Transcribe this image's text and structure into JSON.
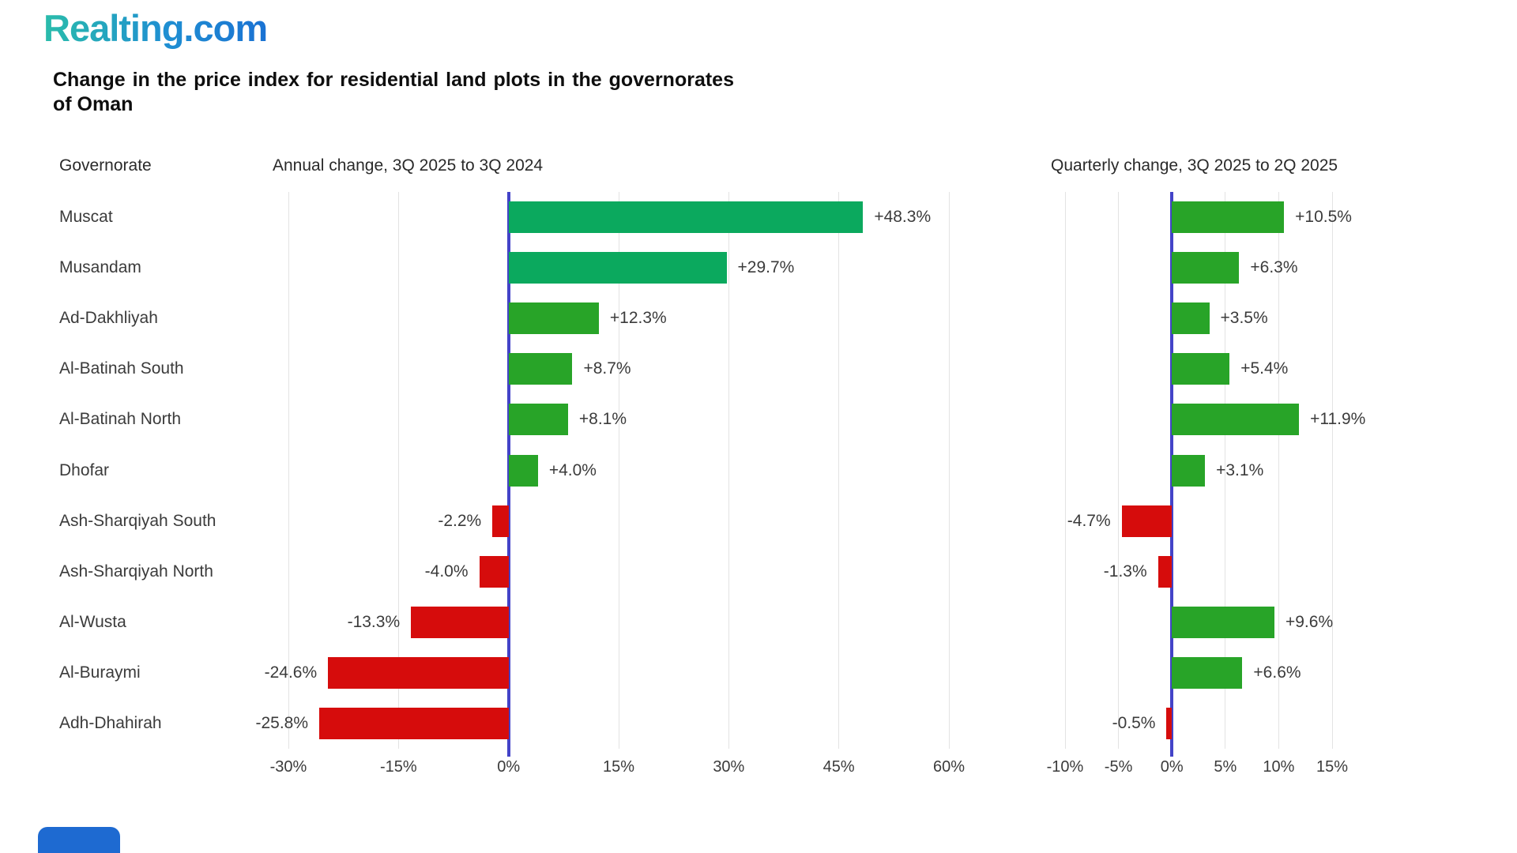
{
  "logo_text": "Realting.com",
  "title": "Change in the price index for residential land plots in the governorates of Oman",
  "column_headers": {
    "governorate": "Governorate",
    "annual": "Annual change, 3Q 2025 to 3Q 2024",
    "quarterly": "Quarterly change, 3Q 2025 to 2Q 2025"
  },
  "palette": {
    "emerald": "#0bA95e",
    "green": "#28a428",
    "red": "#d60c0c",
    "axis": "#4343c8",
    "grid": "#e3e3e3",
    "text": "#3b3b3b",
    "logo_teal": "#2abcab",
    "logo_blue": "#1a72d3",
    "corner_square": "#1e6ad1"
  },
  "chart_data": {
    "type": "bar",
    "orientation": "horizontal",
    "title": "Change in the price index for residential land plots in the governorates of Oman",
    "categories": [
      "Muscat",
      "Musandam",
      "Ad-Dakhliyah",
      "Al-Batinah South",
      "Al-Batinah North",
      "Dhofar",
      "Ash-Sharqiyah South",
      "Ash-Sharqiyah North",
      "Al-Wusta",
      "Al-Buraymi",
      "Adh-Dhahirah"
    ],
    "grid": true,
    "legend": false,
    "series": [
      {
        "name": "Annual change, 3Q 2025 to 3Q 2024",
        "values": [
          48.3,
          29.7,
          12.3,
          8.7,
          8.1,
          4.0,
          -2.2,
          -4.0,
          -13.3,
          -24.6,
          -25.8
        ],
        "labels": [
          "+48.3%",
          "+29.7%",
          "+12.3%",
          "+8.7%",
          "+8.1%",
          "+4.0%",
          "-2.2%",
          "-4.0%",
          "-13.3%",
          "-24.6%",
          "-25.8%"
        ],
        "colors": [
          "emerald",
          "emerald",
          "green",
          "green",
          "green",
          "green",
          "red",
          "red",
          "red",
          "red",
          "red"
        ],
        "xlim": [
          -30,
          60
        ],
        "tick_values": [
          -30,
          -15,
          0,
          15,
          30,
          45,
          60
        ],
        "tick_labels": [
          "-30%",
          "-15%",
          "0%",
          "15%",
          "30%",
          "45%",
          "60%"
        ]
      },
      {
        "name": "Quarterly change, 3Q 2025 to 2Q 2025",
        "values": [
          10.5,
          6.3,
          3.5,
          5.4,
          11.9,
          3.1,
          -4.7,
          -1.3,
          9.6,
          6.6,
          -0.5
        ],
        "labels": [
          "+10.5%",
          "+6.3%",
          "+3.5%",
          "+5.4%",
          "+11.9%",
          "+3.1%",
          "-4.7%",
          "-1.3%",
          "+9.6%",
          "+6.6%",
          "-0.5%"
        ],
        "colors": [
          "green",
          "green",
          "green",
          "green",
          "green",
          "green",
          "red",
          "red",
          "green",
          "green",
          "red"
        ],
        "xlim": [
          -10,
          15
        ],
        "tick_values": [
          -10,
          -5,
          0,
          5,
          10,
          15
        ],
        "tick_labels": [
          "-10%",
          "-5%",
          "0%",
          "5%",
          "10%",
          "15%"
        ]
      }
    ]
  }
}
